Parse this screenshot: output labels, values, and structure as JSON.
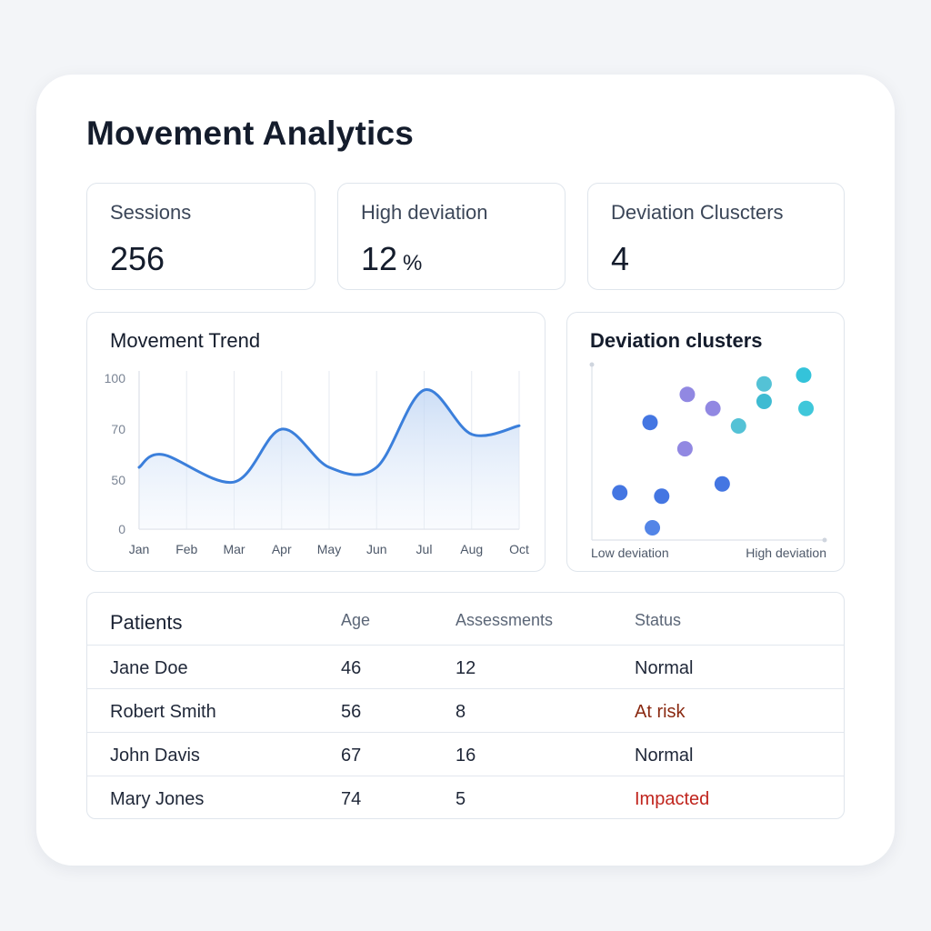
{
  "page": {
    "title": "Movement Analytics"
  },
  "stats": [
    {
      "label": "Sessions",
      "value": "256",
      "unit": ""
    },
    {
      "label": "High deviation",
      "value": "12",
      "unit": "%"
    },
    {
      "label": "Deviation Cluscters",
      "value": "4",
      "unit": ""
    }
  ],
  "trend_panel": {
    "title": "Movement Trend"
  },
  "scatter_panel": {
    "title": "Deviation clusters"
  },
  "chart_data": [
    {
      "type": "line",
      "title": "Movement Trend",
      "x_labels": [
        "Jan",
        "Feb",
        "Mar",
        "Apr",
        "May",
        "Jun",
        "Jul",
        "Aug",
        "Oct"
      ],
      "y_tick_labels": [
        "0",
        "50",
        "70",
        "100"
      ],
      "y_ticks": [
        0,
        50,
        70,
        100
      ],
      "x": [
        0,
        0.5,
        2,
        3,
        4,
        5,
        6,
        7,
        8
      ],
      "values": [
        55,
        60,
        48,
        70,
        55,
        55,
        93,
        68,
        72
      ],
      "ylim": [
        0,
        100
      ],
      "grid": "vertical",
      "color": "#3b7fdb"
    },
    {
      "type": "scatter",
      "title": "Deviation clusters",
      "xlabel_left": "Low deviation",
      "xlabel_right": "High deviation",
      "points": [
        {
          "x": 0.12,
          "y": 0.27,
          "color": "#3a6fe0"
        },
        {
          "x": 0.25,
          "y": 0.67,
          "color": "#3a6fe0"
        },
        {
          "x": 0.3,
          "y": 0.25,
          "color": "#3a6fe0"
        },
        {
          "x": 0.26,
          "y": 0.07,
          "color": "#4a7ee6"
        },
        {
          "x": 0.41,
          "y": 0.83,
          "color": "#8b82e0"
        },
        {
          "x": 0.4,
          "y": 0.52,
          "color": "#8b82e0"
        },
        {
          "x": 0.52,
          "y": 0.75,
          "color": "#8b82e0"
        },
        {
          "x": 0.56,
          "y": 0.32,
          "color": "#3a6fe0"
        },
        {
          "x": 0.63,
          "y": 0.65,
          "color": "#4bbfd4"
        },
        {
          "x": 0.74,
          "y": 0.89,
          "color": "#4bbfd4"
        },
        {
          "x": 0.74,
          "y": 0.79,
          "color": "#35b7d0"
        },
        {
          "x": 0.91,
          "y": 0.94,
          "color": "#29c0d8"
        },
        {
          "x": 0.92,
          "y": 0.75,
          "color": "#35c4d8"
        }
      ]
    }
  ],
  "table": {
    "headers": [
      "Patients",
      "Age",
      "Assessments",
      "Status"
    ],
    "rows": [
      {
        "name": "Jane Doe",
        "age": "46",
        "assessments": "12",
        "status": "Normal",
        "status_color": "#1f2738"
      },
      {
        "name": "Robert Smith",
        "age": "56",
        "assessments": "8",
        "status": "At risk",
        "status_color": "#8a2a12"
      },
      {
        "name": "John Davis",
        "age": "67",
        "assessments": "16",
        "status": "Normal",
        "status_color": "#1f2738"
      },
      {
        "name": "Mary Jones",
        "age": "74",
        "assessments": "5",
        "status": "Impacted",
        "status_color": "#c0241d"
      }
    ]
  }
}
